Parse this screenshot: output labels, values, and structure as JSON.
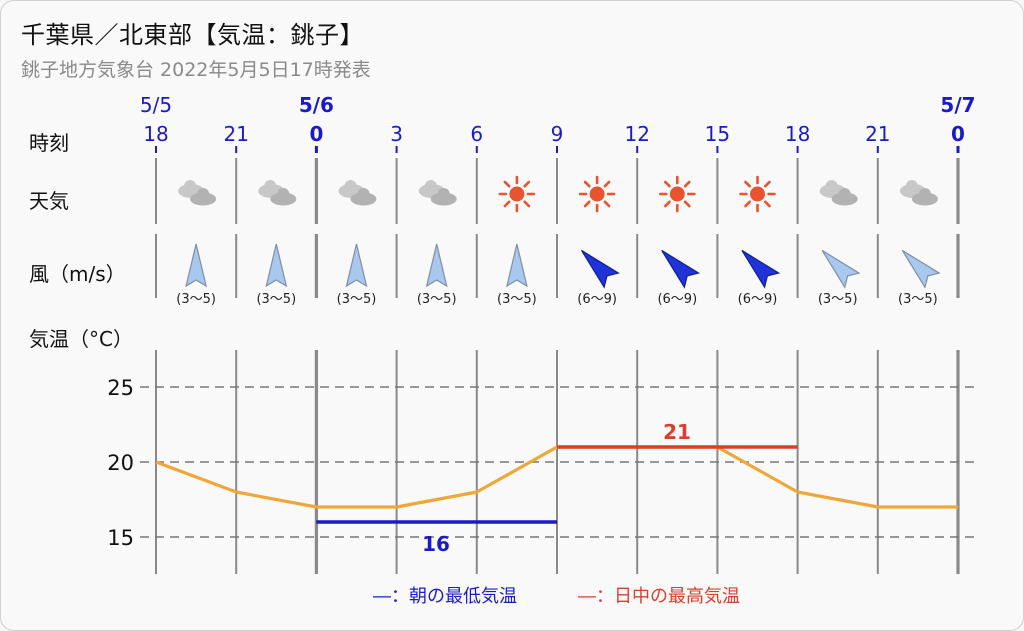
{
  "header": {
    "title": "千葉県／北東部【気温：銚子】",
    "subtitle": "銚子地方気象台 2022年5月5日17時発表"
  },
  "row_labels": {
    "time": "時刻",
    "weather": "天気",
    "wind": "風（m/s）",
    "temperature": "気温（°C）"
  },
  "colors": {
    "hour_text": "#1a1acc",
    "line_orange": "#f0a73a",
    "min_blue": "#1a1acc",
    "max_red": "#d9402c",
    "sun": "#e8542f",
    "cloud": "#b9b9b9",
    "wind_light": "#a9c8ee",
    "wind_strong": "#1f33d8"
  },
  "chart_data": {
    "type": "line",
    "dates": [
      {
        "label": "5/5",
        "at_index": 0
      },
      {
        "label": "5/6",
        "at_index": 2
      },
      {
        "label": "5/7",
        "at_index": 10
      }
    ],
    "x": [
      "18",
      "21",
      "0",
      "3",
      "6",
      "9",
      "12",
      "15",
      "18",
      "21",
      "0"
    ],
    "weather": [
      "cloudy",
      "cloudy",
      "cloudy",
      "cloudy",
      "sunny",
      "sunny",
      "sunny",
      "sunny",
      "cloudy",
      "cloudy"
    ],
    "wind": [
      {
        "range": "(3〜5)",
        "direction": "S",
        "strength": "light"
      },
      {
        "range": "(3〜5)",
        "direction": "S",
        "strength": "light"
      },
      {
        "range": "(3〜5)",
        "direction": "S",
        "strength": "light"
      },
      {
        "range": "(3〜5)",
        "direction": "S",
        "strength": "light"
      },
      {
        "range": "(3〜5)",
        "direction": "S",
        "strength": "light"
      },
      {
        "range": "(6〜9)",
        "direction": "NW",
        "strength": "strong"
      },
      {
        "range": "(6〜9)",
        "direction": "NW",
        "strength": "strong"
      },
      {
        "range": "(6〜9)",
        "direction": "NW",
        "strength": "strong"
      },
      {
        "range": "(3〜5)",
        "direction": "NW",
        "strength": "light"
      },
      {
        "range": "(3〜5)",
        "direction": "NW",
        "strength": "light"
      }
    ],
    "series": [
      {
        "values": [
          20,
          18,
          17,
          17,
          18,
          21,
          21,
          21,
          18,
          17,
          17
        ]
      }
    ],
    "ylim": [
      12.5,
      27
    ],
    "yticks": [
      "15",
      "20",
      "25"
    ],
    "grid": true,
    "min_temp": {
      "value": "16",
      "from_index": 2,
      "to_index": 5,
      "label": "16"
    },
    "max_temp": {
      "value": "21",
      "from_index": 5,
      "to_index": 8,
      "label": "21"
    },
    "legend": {
      "min_label": "―：朝の最低気温",
      "max_label": "―：日中の最高気温",
      "placement": "bottom"
    }
  }
}
